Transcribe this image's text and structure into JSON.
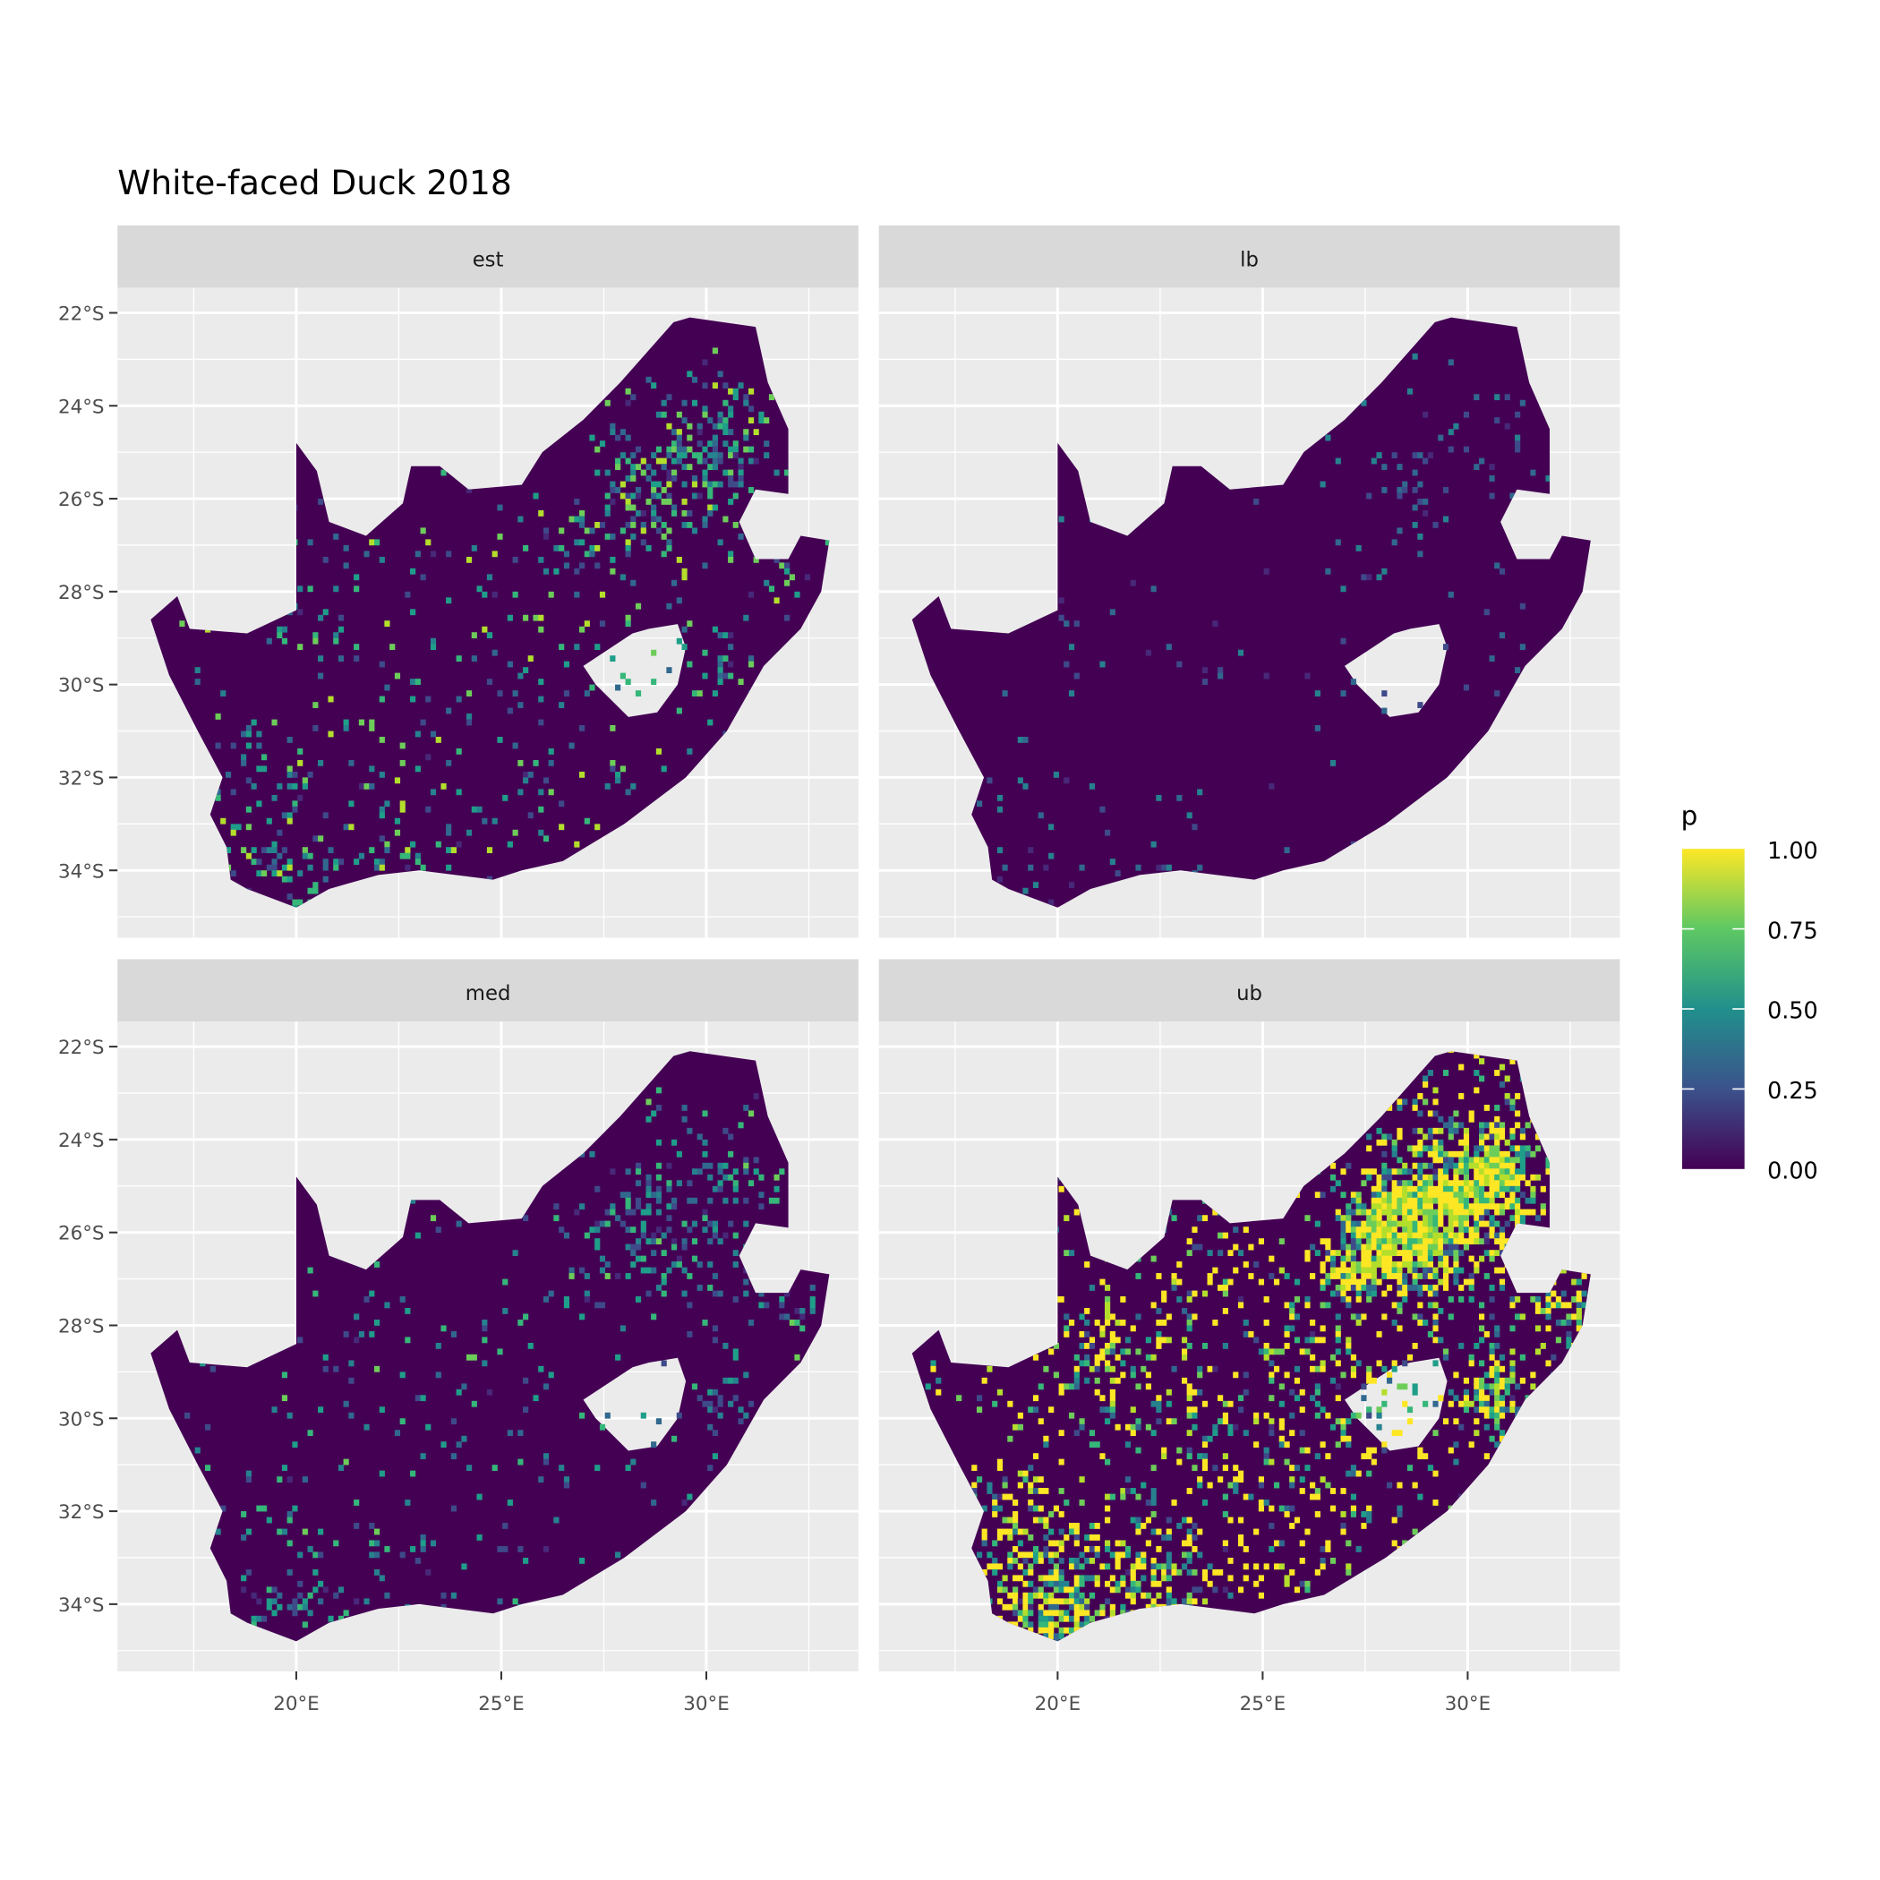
{
  "title": "White-faced Duck 2018",
  "facets": [
    "est",
    "lb",
    "med",
    "ub"
  ],
  "x_axis": {
    "ticks": [
      20,
      25,
      30
    ],
    "tick_labels": [
      "20°E",
      "25°E",
      "30°E"
    ],
    "minor": [
      17.5,
      22.5,
      27.5,
      32.5
    ]
  },
  "y_axis": {
    "ticks": [
      22,
      24,
      26,
      28,
      30,
      32,
      34
    ],
    "tick_labels": [
      "22°S",
      "24°S",
      "26°S",
      "28°S",
      "30°S",
      "32°S",
      "34°S"
    ],
    "minor": [
      23,
      25,
      27,
      29,
      31,
      33,
      35
    ]
  },
  "legend": {
    "title": "p",
    "tick_labels": [
      "1.00",
      "0.75",
      "0.50",
      "0.25",
      "0.00"
    ],
    "range": [
      0,
      1
    ],
    "palette": "viridis",
    "colors": [
      "#440154",
      "#3B528B",
      "#21908C",
      "#5DC863",
      "#FDE725"
    ]
  },
  "colors": {
    "panel_bg": "#EBEBEB",
    "strip_bg": "#D9D9D9",
    "grid": "#FFFFFF",
    "land_low": "#440154"
  }
}
